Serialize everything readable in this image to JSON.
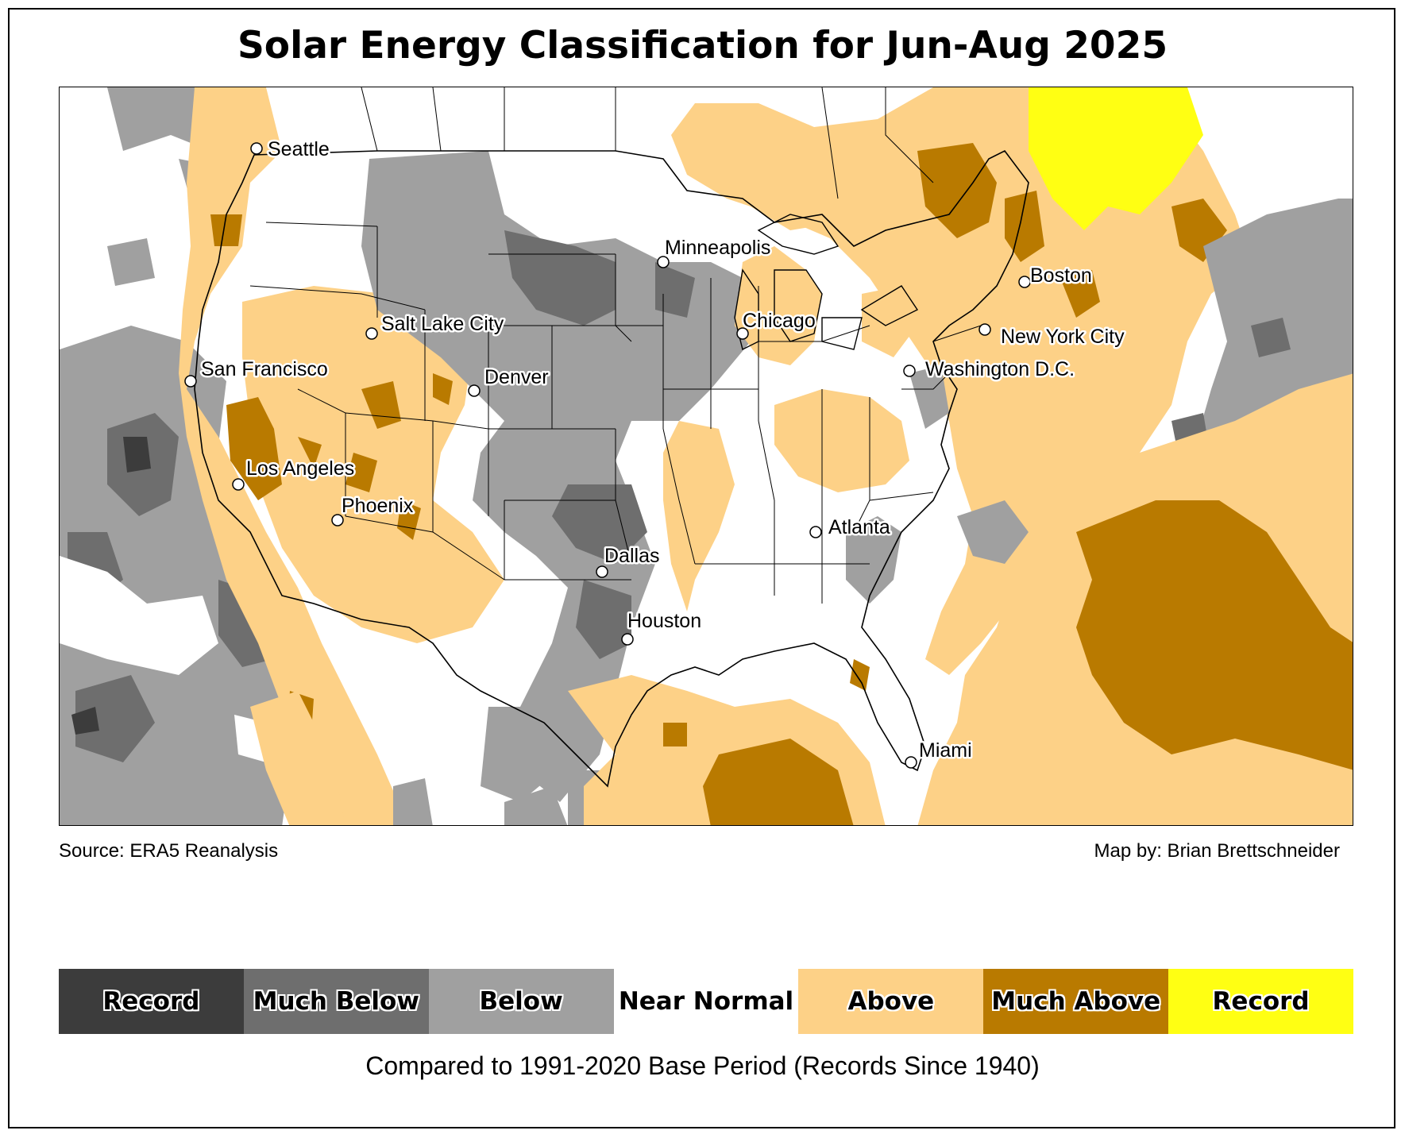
{
  "title": "Solar Energy Classification for Jun-Aug 2025",
  "source": "Source: ERA5 Reanalysis",
  "credit": "Map by: Brian Brettschneider",
  "caption": "Compared to 1991-2020 Base Period   (Records Since 1940)",
  "colors": {
    "record_low": "#3c3c3c",
    "much_below": "#6e6e6e",
    "below": "#a0a0a0",
    "near_normal": "#ffffff",
    "above": "#fdd187",
    "much_above": "#b97a00",
    "record_high": "#ffff13"
  },
  "legend": [
    {
      "label": "Record",
      "color": "#3c3c3c"
    },
    {
      "label": "Much Below",
      "color": "#6e6e6e"
    },
    {
      "label": "Below",
      "color": "#a0a0a0"
    },
    {
      "label": "Near Normal",
      "color": "#ffffff"
    },
    {
      "label": "Above",
      "color": "#fdd187"
    },
    {
      "label": "Much Above",
      "color": "#b97a00"
    },
    {
      "label": "Record",
      "color": "#ffff13"
    }
  ],
  "cities": [
    {
      "name": "Seattle"
    },
    {
      "name": "Minneapolis"
    },
    {
      "name": "Boston"
    },
    {
      "name": "Salt Lake City"
    },
    {
      "name": "Chicago"
    },
    {
      "name": "New York City"
    },
    {
      "name": "San Francisco"
    },
    {
      "name": "Denver"
    },
    {
      "name": "Washington D.C."
    },
    {
      "name": "Los Angeles"
    },
    {
      "name": "Phoenix"
    },
    {
      "name": "Atlanta"
    },
    {
      "name": "Dallas"
    },
    {
      "name": "Houston"
    },
    {
      "name": "Miami"
    }
  ]
}
